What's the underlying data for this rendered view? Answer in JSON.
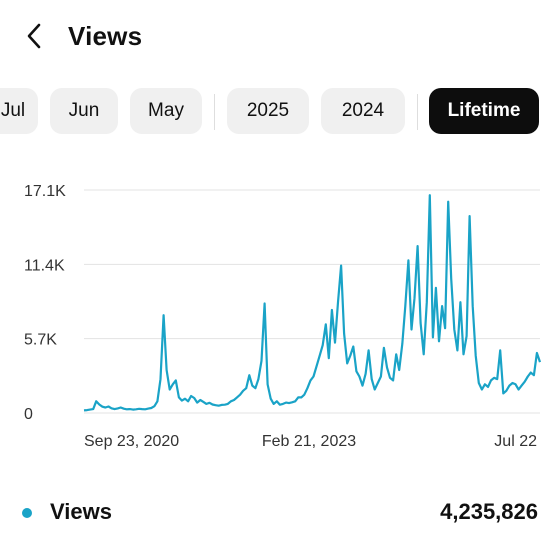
{
  "header": {
    "title": "Views",
    "back_icon": "chevron-left-icon"
  },
  "filters": {
    "items": [
      {
        "label": "Jul",
        "active": false
      },
      {
        "label": "Jun",
        "active": false
      },
      {
        "label": "May",
        "active": false
      },
      {
        "label": "2025",
        "active": false
      },
      {
        "label": "2024",
        "active": false
      },
      {
        "label": "Lifetime",
        "active": true
      }
    ]
  },
  "chart_data": {
    "type": "line",
    "title": "",
    "xlabel": "",
    "ylabel": "",
    "y_ticks": [
      "0",
      "5.7K",
      "11.4K",
      "17.1K"
    ],
    "ylim": [
      0,
      17100
    ],
    "x_tick_labels": [
      "Sep 23, 2020",
      "Feb 21, 2023",
      "Jul 22"
    ],
    "grid": true,
    "color": "#1aa3c7",
    "series": [
      {
        "values": [
          200,
          220,
          260,
          300,
          900,
          650,
          480,
          420,
          500,
          360,
          300,
          350,
          420,
          330,
          280,
          300,
          260,
          280,
          320,
          300,
          280,
          340,
          380,
          520,
          900,
          2600,
          7500,
          3300,
          1800,
          2200,
          2500,
          1200,
          950,
          1100,
          900,
          1300,
          1150,
          800,
          1000,
          850,
          700,
          780,
          650,
          600,
          560,
          620,
          640,
          700,
          900,
          1000,
          1200,
          1400,
          1700,
          1900,
          2900,
          2100,
          1900,
          2600,
          4000,
          8400,
          2200,
          1100,
          700,
          900,
          640,
          700,
          800,
          760,
          820,
          900,
          1200,
          1200,
          1400,
          1900,
          2500,
          2800,
          3600,
          4400,
          5200,
          6800,
          4200,
          7900,
          5400,
          8500,
          11300,
          6100,
          3800,
          4400,
          5100,
          3200,
          2800,
          2100,
          3000,
          4800,
          2600,
          1800,
          2300,
          2800,
          5000,
          3500,
          2700,
          2500,
          4500,
          3300,
          5300,
          8200,
          11700,
          6400,
          8800,
          12800,
          6900,
          4500,
          8500,
          16700,
          5800,
          9600,
          5500,
          8200,
          6500,
          16200,
          10300,
          6400,
          4800,
          8500,
          4500,
          5900,
          15100,
          8200,
          4400,
          2300,
          1800,
          2200,
          2000,
          2500,
          2700,
          2600,
          4800,
          1500,
          1700,
          2100,
          2300,
          2200,
          1800,
          2100,
          2400,
          2800,
          3100,
          2900,
          4600,
          3900
        ]
      }
    ]
  },
  "legend": {
    "label": "Views",
    "value": "4,235,826",
    "color": "#1aa3c7"
  }
}
